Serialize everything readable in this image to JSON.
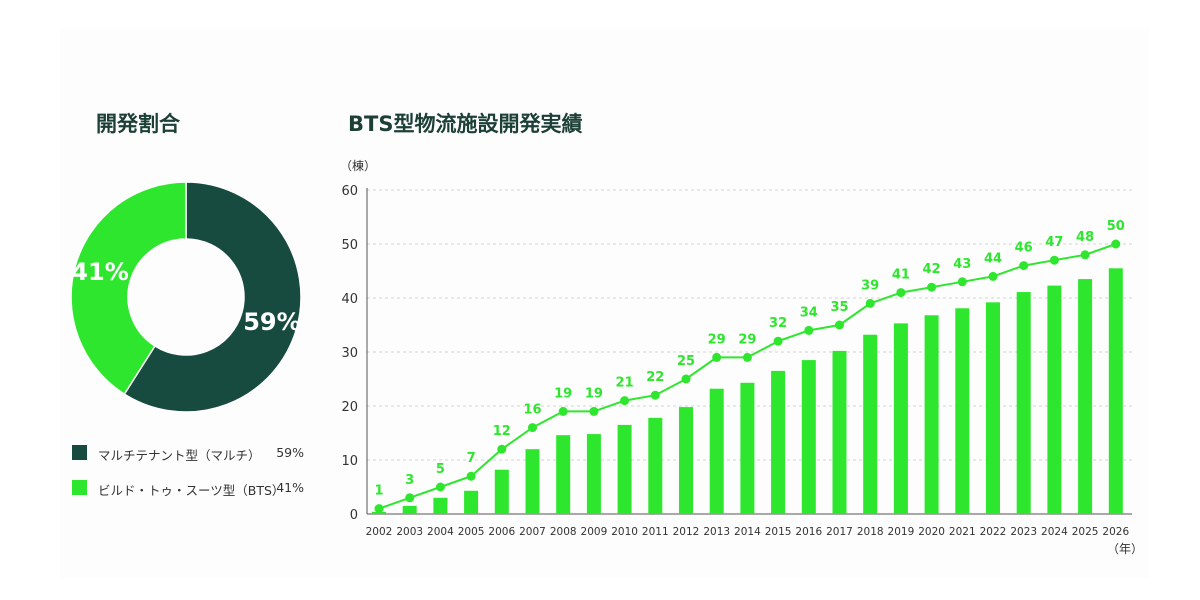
{
  "donut": {
    "title": "開発割合",
    "colors": [
      "#184b40",
      "#2ee62e"
    ],
    "legend": [
      {
        "label": "マルチテナント型（マルチ）",
        "value_label": "59%"
      },
      {
        "label": "ビルド・トゥ・スーツ型（BTS）",
        "value_label": "41%"
      }
    ],
    "slice_labels": [
      "59%",
      "41%"
    ]
  },
  "bar": {
    "title": "BTS型物流施設開発実績",
    "bar_color": "#2ee62e",
    "line_color": "#2ee62e",
    "label_color": "#2ee62e"
  },
  "chart_data": [
    {
      "type": "pie",
      "title": "開発割合",
      "categories": [
        "マルチテナント型（マルチ）",
        "ビルド・トゥ・スーツ型（BTS）"
      ],
      "values": [
        59,
        41
      ],
      "legend": "bottom"
    },
    {
      "type": "bar",
      "title": "BTS型物流施設開発実績",
      "ylabel": "（棟）",
      "xlabel": "（年）",
      "ylim": [
        0,
        60
      ],
      "yticks": [
        0,
        10,
        20,
        30,
        40,
        50,
        60
      ],
      "grid": true,
      "categories": [
        "2002",
        "2003",
        "2004",
        "2005",
        "2006",
        "2007",
        "2008",
        "2009",
        "2010",
        "2011",
        "2012",
        "2013",
        "2014",
        "2015",
        "2016",
        "2017",
        "2018",
        "2019",
        "2020",
        "2021",
        "2022",
        "2023",
        "2024",
        "2025",
        "2026"
      ],
      "series": [
        {
          "type": "bar",
          "values": [
            0.4,
            1.5,
            3,
            4.3,
            8.2,
            12,
            14.6,
            14.8,
            16.5,
            17.8,
            19.8,
            23.2,
            24.3,
            26.5,
            28.5,
            30.2,
            33.2,
            35.3,
            36.8,
            38.1,
            39.2,
            41.1,
            42.3,
            43.5,
            45.5
          ]
        },
        {
          "type": "line",
          "values": [
            1,
            3,
            5,
            7,
            12,
            16,
            19,
            19,
            21,
            22,
            25,
            29,
            29,
            32,
            34,
            35,
            39,
            41,
            42,
            43,
            44,
            46,
            47,
            48,
            50
          ],
          "labels": [
            "1",
            "3",
            "5",
            "7",
            "12",
            "16",
            "19",
            "19",
            "21",
            "22",
            "25",
            "29",
            "29",
            "32",
            "34",
            "35",
            "39",
            "41",
            "42",
            "43",
            "44",
            "46",
            "47",
            "48",
            "50"
          ]
        }
      ]
    }
  ]
}
